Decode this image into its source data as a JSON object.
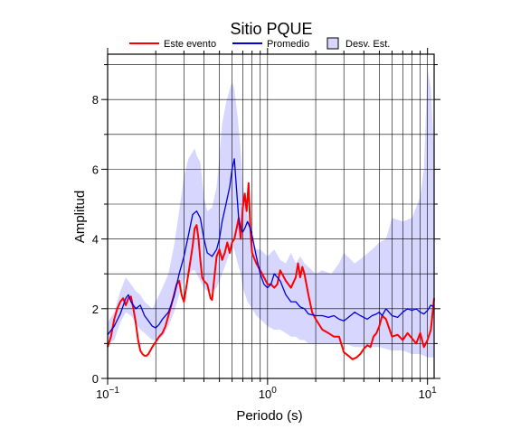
{
  "chart_data": {
    "type": "line",
    "title": "Sitio PQUE",
    "xlabel": "Periodo (s)",
    "ylabel": "Amplitud",
    "x_scale": "log",
    "xlim": [
      0.1,
      11
    ],
    "ylim": [
      0,
      9.3
    ],
    "grid": true,
    "legend_position": "top",
    "x_ticks": [
      {
        "value": 0.1,
        "base": "10",
        "exp": "−1"
      },
      {
        "value": 1,
        "base": "10",
        "exp": "0"
      },
      {
        "value": 10,
        "base": "10",
        "exp": "1"
      }
    ],
    "y_ticks": [
      0,
      2,
      4,
      6,
      8
    ],
    "legend": [
      {
        "label": "Este evento",
        "kind": "line",
        "color": "#ff0000"
      },
      {
        "label": "Promedio",
        "kind": "line",
        "color": "#0000dd"
      },
      {
        "label": "Desv. Est.",
        "kind": "band",
        "color": "#d6d6ff"
      }
    ],
    "band": {
      "name": "Desv. Est.",
      "color": "#d6d6ff",
      "x": [
        0.1,
        0.11,
        0.12,
        0.13,
        0.14,
        0.15,
        0.16,
        0.17,
        0.18,
        0.19,
        0.2,
        0.22,
        0.24,
        0.26,
        0.28,
        0.3,
        0.32,
        0.34,
        0.35,
        0.36,
        0.38,
        0.4,
        0.42,
        0.45,
        0.48,
        0.5,
        0.52,
        0.55,
        0.58,
        0.6,
        0.62,
        0.65,
        0.68,
        0.7,
        0.75,
        0.8,
        0.85,
        0.9,
        1.0,
        1.1,
        1.2,
        1.3,
        1.4,
        1.5,
        1.6,
        1.7,
        1.8,
        2.0,
        2.2,
        2.5,
        2.8,
        3.0,
        3.5,
        4.0,
        4.5,
        5.0,
        5.5,
        6.0,
        7.0,
        8.0,
        9.0,
        9.5,
        10.0,
        10.5,
        11.0
      ],
      "upper": [
        1.6,
        1.9,
        2.5,
        2.9,
        2.7,
        2.5,
        2.4,
        2.2,
        2.1,
        2.0,
        2.2,
        2.6,
        3.0,
        3.8,
        4.8,
        5.8,
        6.3,
        6.5,
        6.6,
        6.4,
        6.2,
        5.2,
        4.8,
        4.9,
        5.5,
        6.4,
        7.3,
        7.9,
        8.3,
        8.5,
        8.3,
        7.5,
        6.5,
        5.6,
        4.7,
        4.0,
        3.7,
        3.7,
        3.5,
        3.7,
        3.4,
        3.3,
        3.6,
        3.3,
        3.5,
        3.3,
        3.2,
        3.0,
        3.1,
        3.0,
        3.3,
        3.6,
        3.3,
        3.5,
        3.7,
        3.9,
        4.0,
        4.6,
        4.5,
        4.6,
        5.2,
        6.0,
        8.9,
        8.3,
        6.5
      ],
      "lower": [
        1.0,
        1.1,
        1.6,
        1.9,
        1.8,
        1.6,
        1.4,
        1.3,
        1.2,
        1.1,
        1.1,
        1.2,
        1.5,
        1.9,
        2.4,
        2.8,
        3.0,
        3.1,
        3.1,
        3.0,
        2.8,
        2.6,
        2.5,
        2.5,
        2.6,
        2.8,
        3.0,
        3.3,
        3.6,
        3.8,
        3.7,
        3.3,
        3.0,
        2.6,
        2.2,
        2.0,
        1.8,
        1.7,
        1.5,
        1.4,
        1.4,
        1.3,
        1.2,
        1.2,
        1.1,
        1.1,
        1.0,
        1.0,
        1.0,
        1.0,
        1.0,
        1.0,
        0.9,
        0.9,
        0.9,
        0.9,
        0.85,
        0.8,
        0.8,
        0.7,
        0.7,
        0.65,
        0.6,
        0.6,
        0.6
      ]
    },
    "series": [
      {
        "name": "Este evento",
        "color": "#ff0000",
        "x": [
          0.1,
          0.105,
          0.11,
          0.115,
          0.12,
          0.125,
          0.13,
          0.135,
          0.14,
          0.145,
          0.15,
          0.155,
          0.16,
          0.165,
          0.17,
          0.175,
          0.18,
          0.185,
          0.19,
          0.2,
          0.21,
          0.22,
          0.23,
          0.24,
          0.25,
          0.26,
          0.27,
          0.28,
          0.29,
          0.3,
          0.31,
          0.32,
          0.33,
          0.34,
          0.35,
          0.36,
          0.37,
          0.38,
          0.39,
          0.4,
          0.42,
          0.44,
          0.45,
          0.46,
          0.48,
          0.5,
          0.52,
          0.54,
          0.56,
          0.58,
          0.6,
          0.62,
          0.64,
          0.66,
          0.68,
          0.7,
          0.72,
          0.74,
          0.76,
          0.78,
          0.8,
          0.85,
          0.9,
          0.95,
          1.0,
          1.05,
          1.1,
          1.15,
          1.2,
          1.3,
          1.4,
          1.5,
          1.55,
          1.6,
          1.65,
          1.7,
          1.8,
          1.9,
          2.0,
          2.2,
          2.4,
          2.6,
          2.8,
          3.0,
          3.2,
          3.4,
          3.6,
          3.8,
          4.0,
          4.2,
          4.4,
          4.6,
          4.8,
          5.0,
          5.2,
          5.5,
          6.0,
          6.5,
          7.0,
          7.5,
          8.0,
          8.5,
          9.0,
          9.5,
          10.0,
          10.5,
          11.0
        ],
        "values": [
          0.9,
          1.2,
          1.7,
          2.0,
          2.2,
          2.3,
          2.1,
          2.3,
          2.35,
          2.0,
          1.6,
          1.1,
          0.8,
          0.7,
          0.65,
          0.65,
          0.7,
          0.8,
          0.9,
          1.05,
          1.2,
          1.3,
          1.5,
          1.8,
          2.1,
          2.4,
          2.7,
          2.8,
          2.4,
          2.2,
          2.6,
          3.0,
          3.4,
          3.8,
          4.3,
          4.4,
          4.0,
          3.4,
          2.9,
          2.8,
          2.7,
          2.3,
          2.25,
          2.7,
          3.5,
          3.7,
          3.4,
          3.6,
          3.9,
          3.6,
          3.9,
          4.0,
          4.3,
          4.6,
          4.0,
          4.9,
          5.3,
          4.8,
          5.6,
          4.3,
          3.6,
          3.3,
          3.1,
          2.9,
          2.7,
          2.7,
          2.6,
          2.7,
          3.1,
          2.8,
          2.6,
          2.9,
          3.3,
          2.9,
          3.2,
          3.0,
          2.4,
          1.9,
          1.7,
          1.4,
          1.3,
          1.2,
          1.2,
          0.75,
          0.65,
          0.55,
          0.6,
          0.7,
          0.85,
          0.95,
          0.9,
          1.2,
          1.3,
          1.5,
          1.8,
          1.7,
          1.2,
          1.25,
          1.1,
          1.3,
          1.15,
          1.0,
          1.3,
          0.9,
          1.1,
          1.4,
          2.3
        ]
      },
      {
        "name": "Promedio",
        "color": "#0000dd",
        "x": [
          0.1,
          0.11,
          0.12,
          0.13,
          0.135,
          0.14,
          0.15,
          0.16,
          0.17,
          0.18,
          0.19,
          0.2,
          0.21,
          0.22,
          0.24,
          0.26,
          0.28,
          0.3,
          0.32,
          0.34,
          0.36,
          0.38,
          0.4,
          0.42,
          0.45,
          0.48,
          0.5,
          0.52,
          0.55,
          0.58,
          0.6,
          0.62,
          0.64,
          0.66,
          0.68,
          0.7,
          0.72,
          0.75,
          0.78,
          0.8,
          0.85,
          0.9,
          0.95,
          1.0,
          1.05,
          1.1,
          1.15,
          1.2,
          1.3,
          1.4,
          1.5,
          1.6,
          1.7,
          1.8,
          2.0,
          2.2,
          2.4,
          2.6,
          2.8,
          3.0,
          3.2,
          3.5,
          3.8,
          4.0,
          4.2,
          4.5,
          4.8,
          5.0,
          5.2,
          5.5,
          6.0,
          6.5,
          7.0,
          7.5,
          8.0,
          8.5,
          9.0,
          9.5,
          10.0,
          10.5,
          11.0
        ],
        "values": [
          1.25,
          1.5,
          1.85,
          2.3,
          2.4,
          2.2,
          2.0,
          2.1,
          1.8,
          1.65,
          1.5,
          1.45,
          1.55,
          1.7,
          1.9,
          2.35,
          3.0,
          3.5,
          4.1,
          4.7,
          4.8,
          4.6,
          4.0,
          3.6,
          3.5,
          3.7,
          4.0,
          4.5,
          5.0,
          5.5,
          6.0,
          6.3,
          5.4,
          4.6,
          4.3,
          4.2,
          4.3,
          4.5,
          4.3,
          4.1,
          3.5,
          3.0,
          2.7,
          2.6,
          2.7,
          3.0,
          2.9,
          2.8,
          2.4,
          2.2,
          2.2,
          2.05,
          2.0,
          1.85,
          1.8,
          1.8,
          1.75,
          1.8,
          1.7,
          1.65,
          1.75,
          1.9,
          1.8,
          1.75,
          1.7,
          1.8,
          1.85,
          1.9,
          1.8,
          2.0,
          1.8,
          1.75,
          1.9,
          2.0,
          1.95,
          2.0,
          1.9,
          1.85,
          1.95,
          2.1,
          2.05
        ]
      }
    ]
  }
}
